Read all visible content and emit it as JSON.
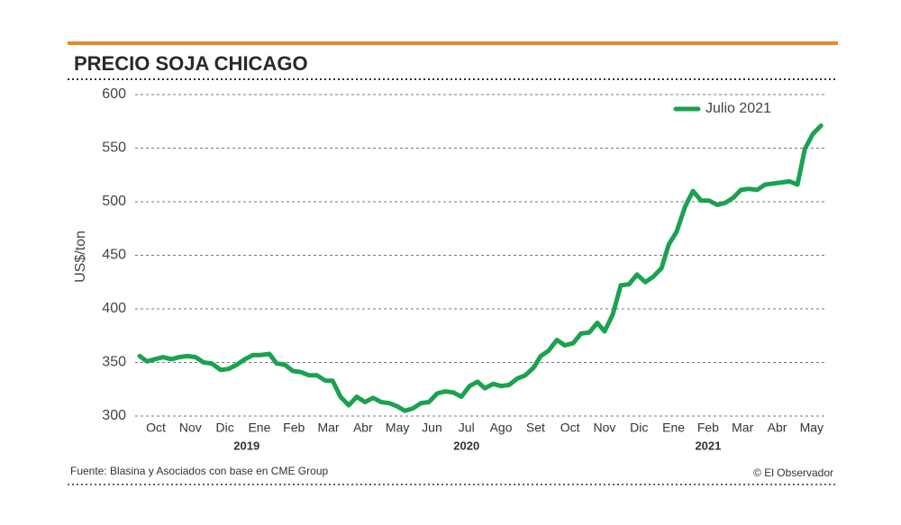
{
  "chart_data": {
    "type": "line",
    "title": "PRECIO SOJA CHICAGO",
    "y_label": "US$/ton",
    "source": "Fuente: Blasina y Asociados con base en CME Group",
    "credit": "© El Observador",
    "year_labels": [
      "2019",
      "2020",
      "2021"
    ],
    "grid": true,
    "legend": "upper right",
    "xlim": [
      -0.47,
      19.37
    ],
    "xticks": [
      {
        "value": 0,
        "label": "Oct"
      },
      {
        "value": 1,
        "label": "Nov"
      },
      {
        "value": 2,
        "label": "Dic"
      },
      {
        "value": 3,
        "label": "Ene"
      },
      {
        "value": 4,
        "label": "Feb"
      },
      {
        "value": 5,
        "label": "Mar"
      },
      {
        "value": 6,
        "label": "Abr"
      },
      {
        "value": 7,
        "label": "May"
      },
      {
        "value": 8,
        "label": "Jun"
      },
      {
        "value": 9,
        "label": "Jul"
      },
      {
        "value": 10,
        "label": "Ago"
      },
      {
        "value": 11,
        "label": "Set"
      },
      {
        "value": 12,
        "label": "Oct"
      },
      {
        "value": 13,
        "label": "Nov"
      },
      {
        "value": 14,
        "label": "Dic"
      },
      {
        "value": 15,
        "label": "Ene"
      },
      {
        "value": 16,
        "label": "Feb"
      },
      {
        "value": 17,
        "label": "Mar"
      },
      {
        "value": 18,
        "label": "Abr"
      },
      {
        "value": 19,
        "label": "May"
      }
    ],
    "ylim": [
      300,
      600
    ],
    "yticks": [
      300,
      350,
      400,
      450,
      500,
      550,
      600
    ],
    "x": [
      -0.47,
      -0.26,
      -0.03,
      0.21,
      0.44,
      0.68,
      0.91,
      1.15,
      1.38,
      1.62,
      1.88,
      2.11,
      2.35,
      2.58,
      2.82,
      3.05,
      3.29,
      3.5,
      3.73,
      3.97,
      4.2,
      4.44,
      4.67,
      4.91,
      5.12,
      5.35,
      5.59,
      5.82,
      6.06,
      6.29,
      6.53,
      6.76,
      7.0,
      7.21,
      7.44,
      7.68,
      7.91,
      8.15,
      8.38,
      8.62,
      8.85,
      9.09,
      9.32,
      9.53,
      9.77,
      10.0,
      10.23,
      10.47,
      10.7,
      10.94,
      11.15,
      11.38,
      11.62,
      11.85,
      12.09,
      12.32,
      12.56,
      12.79,
      13.0,
      13.24,
      13.47,
      13.71,
      13.94,
      14.18,
      14.41,
      14.65,
      14.86,
      15.09,
      15.33,
      15.56,
      15.8,
      16.03,
      16.27,
      16.5,
      16.74,
      16.95,
      17.18,
      17.42,
      17.65,
      17.89,
      18.12,
      18.36,
      18.59,
      18.8,
      19.03,
      19.27
    ],
    "series": [
      {
        "name": "Julio 2021",
        "color": "#1ba150",
        "values": [
          356,
          351,
          353,
          355,
          353,
          355,
          356,
          355,
          350,
          349,
          343,
          344,
          348,
          353,
          357,
          357,
          358,
          349,
          348,
          342,
          341,
          338,
          338,
          333,
          333,
          318,
          310,
          318,
          313,
          317,
          313,
          312,
          309,
          305,
          307,
          312,
          313,
          321,
          323,
          322,
          318,
          328,
          332,
          326,
          330,
          328,
          329,
          335,
          338,
          345,
          356,
          361,
          371,
          366,
          368,
          377,
          378,
          387,
          379,
          395,
          422,
          423,
          432,
          425,
          430,
          438,
          460,
          472,
          495,
          510,
          501,
          501,
          497,
          499,
          504,
          511,
          512,
          511,
          516,
          517,
          518,
          519,
          516,
          549,
          563,
          571
        ]
      }
    ]
  }
}
